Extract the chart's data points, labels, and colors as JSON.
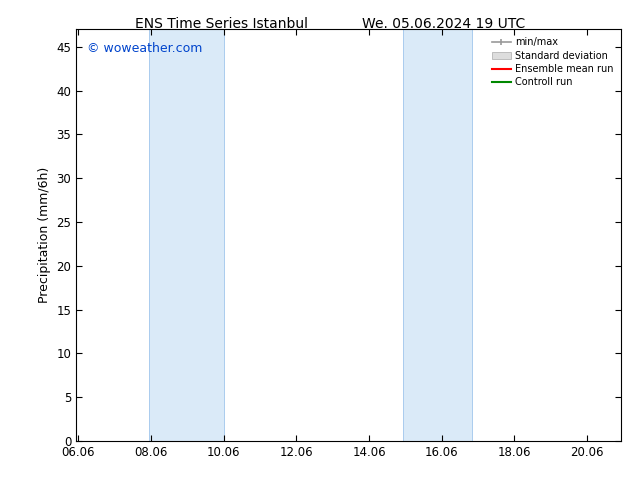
{
  "title_left": "ENS Time Series Istanbul",
  "title_right": "We. 05.06.2024 19 UTC",
  "ylabel": "Precipitation (mm/6h)",
  "xlabel": "",
  "xlim": [
    6.0,
    21.0
  ],
  "ylim": [
    0,
    47
  ],
  "yticks": [
    0,
    5,
    10,
    15,
    20,
    25,
    30,
    35,
    40,
    45
  ],
  "xticks": [
    6.06,
    8.06,
    10.06,
    12.06,
    14.06,
    16.06,
    18.06,
    20.06
  ],
  "xtick_labels": [
    "06.06",
    "08.06",
    "10.06",
    "12.06",
    "14.06",
    "16.06",
    "18.06",
    "20.06"
  ],
  "shaded_regions": [
    {
      "xmin": 8.0,
      "xmax": 10.06,
      "color": "#ddeeff"
    },
    {
      "xmin": 15.06,
      "xmax": 16.5,
      "color": "#ddeeff"
    },
    {
      "xmin": 16.5,
      "xmax": 17.0,
      "color": "#ddeeff"
    }
  ],
  "watermark": "© woweather.com",
  "watermark_color": "#0044cc",
  "background_color": "#ffffff",
  "plot_bg_color": "#ffffff",
  "legend_labels": [
    "min/max",
    "Standard deviation",
    "Ensemble mean run",
    "Controll run"
  ],
  "legend_colors": [
    "#999999",
    "#cccccc",
    "#ff0000",
    "#008800"
  ],
  "title_fontsize": 10,
  "tick_fontsize": 8.5,
  "ylabel_fontsize": 9,
  "watermark_fontsize": 9
}
